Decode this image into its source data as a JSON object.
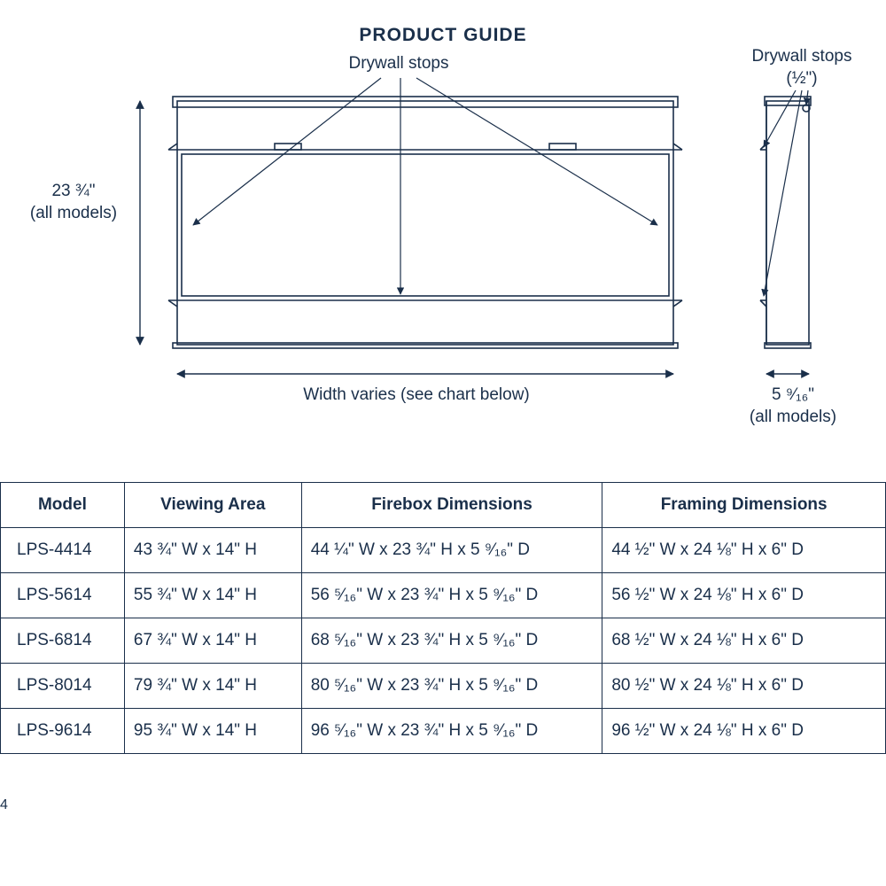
{
  "title": "PRODUCT GUIDE",
  "diagram": {
    "front_label_top": "Drywall stops",
    "side_label_top": "Drywall stops\n(½\")",
    "height_label": "23 ¾\"\n(all models)",
    "width_label": "Width varies (see chart below)",
    "depth_label": "5 ⁹⁄₁₆\"\n(all models)",
    "stroke": "#1a2f4a",
    "stroke_width": 1.6,
    "arrow_size": 9
  },
  "table": {
    "headers": [
      "Model",
      "Viewing Area",
      "Firebox Dimensions",
      "Framing Dimensions"
    ],
    "rows": [
      [
        "LPS-4414",
        "43 ¾\" W x 14\" H",
        "44 ¼\" W x 23 ¾\" H x 5 ⁹⁄₁₆\" D",
        "44 ½\" W x 24 ⅛\" H x 6\" D"
      ],
      [
        "LPS-5614",
        "55 ¾\" W x 14\" H",
        "56 ⁵⁄₁₆\" W x 23 ¾\" H x 5 ⁹⁄₁₆\" D",
        "56 ½\" W x 24 ⅛\" H x 6\" D"
      ],
      [
        "LPS-6814",
        "67 ¾\" W x 14\" H",
        "68 ⁵⁄₁₆\" W x 23 ¾\" H x 5 ⁹⁄₁₆\" D",
        "68 ½\" W x 24 ⅛\" H x 6\" D"
      ],
      [
        "LPS-8014",
        "79 ¾\" W x 14\" H",
        "80 ⁵⁄₁₆\" W x 23 ¾\" H x 5 ⁹⁄₁₆\" D",
        "80 ½\" W x 24 ⅛\" H x 6\" D"
      ],
      [
        "LPS-9614",
        "95 ¾\" W x 14\" H",
        "96 ⁵⁄₁₆\" W x 23 ¾\" H x 5 ⁹⁄₁₆\" D",
        "96 ½\" W x 24 ⅛\" H x 6\" D"
      ]
    ]
  },
  "footer_num": "4"
}
